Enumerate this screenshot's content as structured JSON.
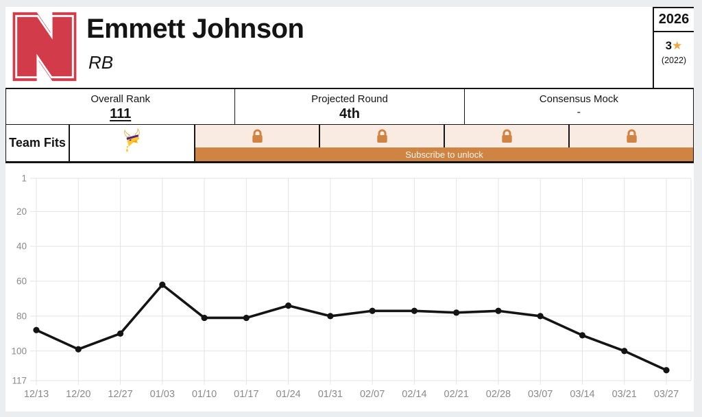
{
  "header": {
    "player_name": "Emmett Johnson",
    "position": "RB",
    "school_logo": "nebraska-cornhuskers-logo",
    "draft_class_year": "2026",
    "recruit_stars": "3",
    "recruit_class": "(2022)"
  },
  "stats": {
    "overall_rank": {
      "label": "Overall Rank",
      "value": "111"
    },
    "projected_round": {
      "label": "Projected Round",
      "value": "4th"
    },
    "consensus_mock": {
      "label": "Consensus Mock",
      "value": "-"
    }
  },
  "team_fits": {
    "label": "Team Fits",
    "visible_teams": [
      "minnesota-vikings"
    ],
    "locked_slots": 4,
    "subscribe_label": "Subscribe to unlock"
  },
  "chart_data": {
    "type": "line",
    "title": "",
    "xlabel": "",
    "ylabel": "",
    "x": [
      "12/13",
      "12/20",
      "12/27",
      "01/03",
      "01/10",
      "01/17",
      "01/24",
      "01/31",
      "02/07",
      "02/14",
      "02/21",
      "02/28",
      "03/07",
      "03/14",
      "03/21",
      "03/27"
    ],
    "series": [
      {
        "name": "Overall Rank",
        "values": [
          88,
          99,
          90,
          62,
          81,
          81,
          74,
          80,
          77,
          77,
          78,
          77,
          80,
          91,
          100,
          111
        ]
      }
    ],
    "y_ticks": [
      1,
      20,
      40,
      60,
      80,
      100,
      117
    ],
    "ylim": [
      1,
      117
    ],
    "y_axis_inverted": true,
    "grid": true,
    "legend_position": "none",
    "line_color": "#141414"
  },
  "icons": {
    "star": "star-icon",
    "lock": "lock-icon"
  },
  "colors": {
    "accent_orange": "#d08444",
    "locked_bg": "#f9ebe1",
    "nebraska_red": "#d23b4a",
    "star_gold": "#efa63d",
    "vikings_purple": "#4F2683",
    "vikings_gold": "#FFC62F",
    "grid_gray": "#e3e3e3"
  }
}
